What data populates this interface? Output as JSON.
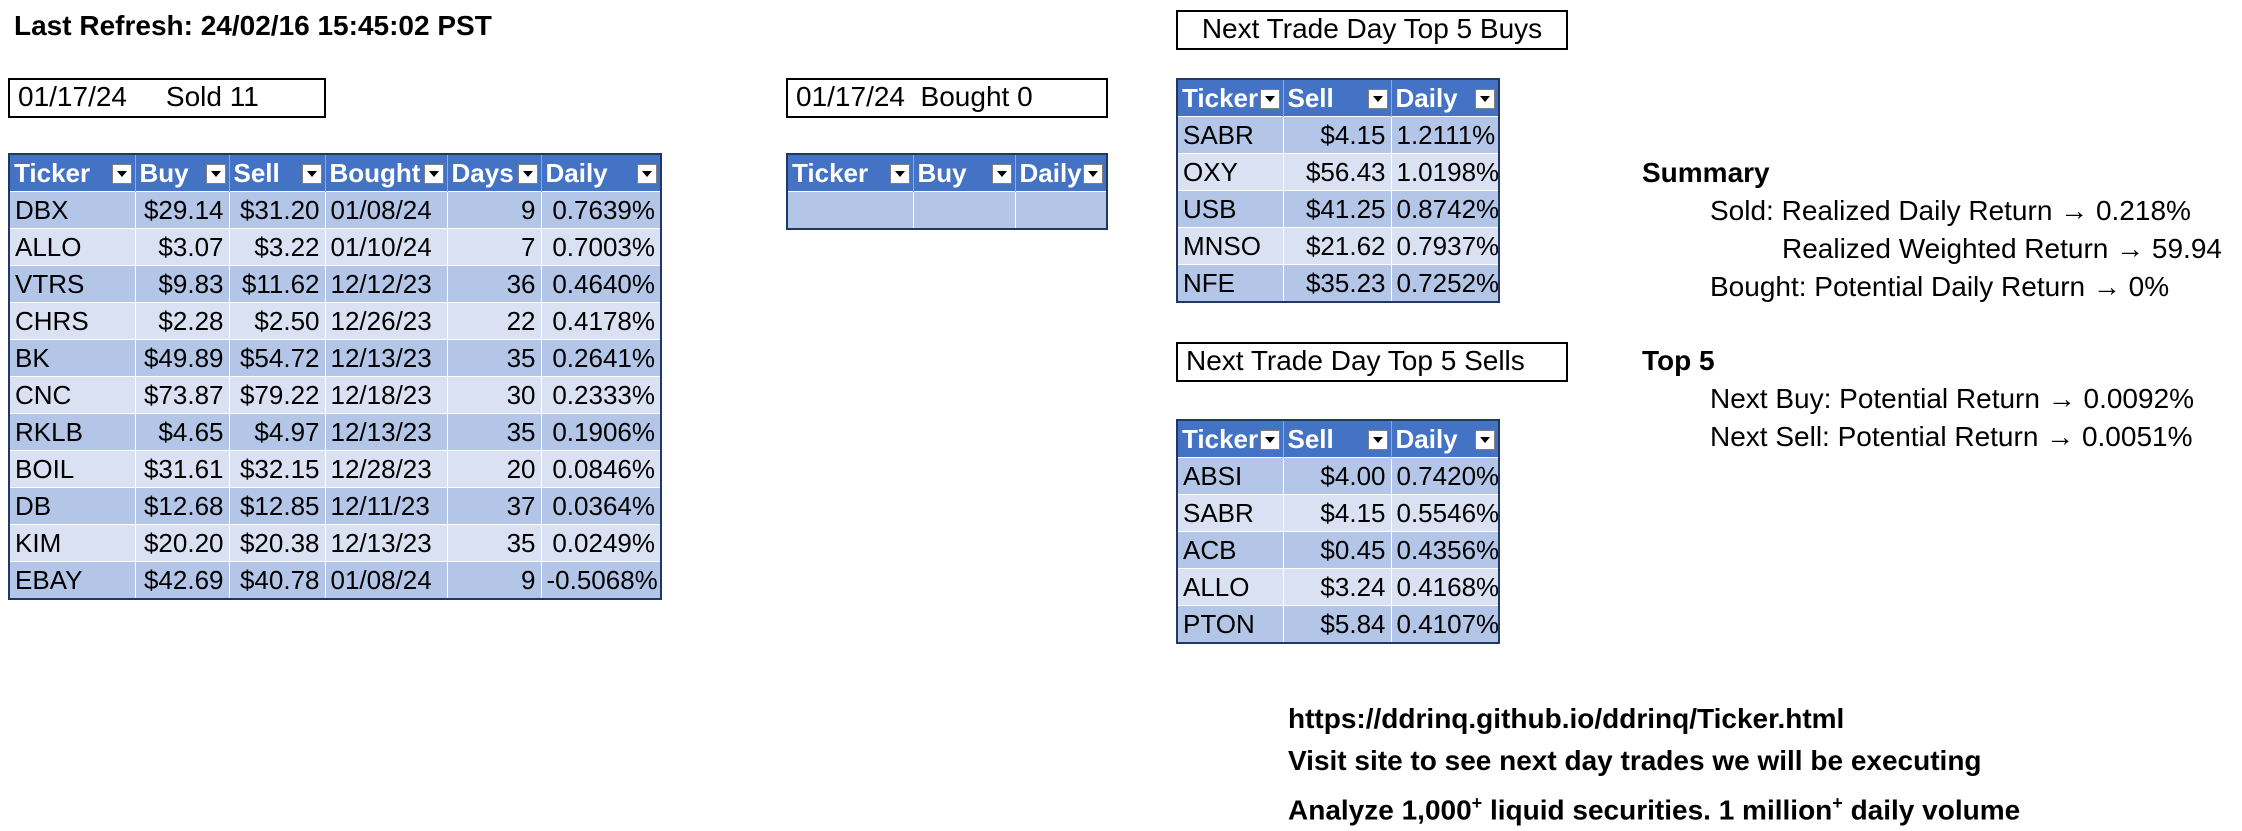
{
  "last_refresh": "Last Refresh: 24/02/16 15:45:02 PST",
  "sold_box": "01/17/24     Sold 11",
  "bought_box": "01/17/24  Bought 0",
  "buys_title": "Next Trade Day Top 5 Buys",
  "sells_title": "Next Trade Day Top 5 Sells",
  "sold_table": {
    "headers": [
      "Ticker",
      "Buy",
      "Sell",
      "Bought",
      "Days",
      "Daily"
    ],
    "rows": [
      [
        "DBX",
        "$29.14",
        "$31.20",
        "01/08/24",
        "9",
        "0.7639%"
      ],
      [
        "ALLO",
        "$3.07",
        "$3.22",
        "01/10/24",
        "7",
        "0.7003%"
      ],
      [
        "VTRS",
        "$9.83",
        "$11.62",
        "12/12/23",
        "36",
        "0.4640%"
      ],
      [
        "CHRS",
        "$2.28",
        "$2.50",
        "12/26/23",
        "22",
        "0.4178%"
      ],
      [
        "BK",
        "$49.89",
        "$54.72",
        "12/13/23",
        "35",
        "0.2641%"
      ],
      [
        "CNC",
        "$73.87",
        "$79.22",
        "12/18/23",
        "30",
        "0.2333%"
      ],
      [
        "RKLB",
        "$4.65",
        "$4.97",
        "12/13/23",
        "35",
        "0.1906%"
      ],
      [
        "BOIL",
        "$31.61",
        "$32.15",
        "12/28/23",
        "20",
        "0.0846%"
      ],
      [
        "DB",
        "$12.68",
        "$12.85",
        "12/11/23",
        "37",
        "0.0364%"
      ],
      [
        "KIM",
        "$20.20",
        "$20.38",
        "12/13/23",
        "35",
        "0.0249%"
      ],
      [
        "EBAY",
        "$42.69",
        "$40.78",
        "01/08/24",
        "9",
        "-0.5068%"
      ]
    ]
  },
  "bought_table": {
    "headers": [
      "Ticker",
      "Buy",
      "Daily"
    ]
  },
  "buys_table": {
    "headers": [
      "Ticker",
      "Sell",
      "Daily"
    ],
    "rows": [
      [
        "SABR",
        "$4.15",
        "1.2111%"
      ],
      [
        "OXY",
        "$56.43",
        "1.0198%"
      ],
      [
        "USB",
        "$41.25",
        "0.8742%"
      ],
      [
        "MNSO",
        "$21.62",
        "0.7937%"
      ],
      [
        "NFE",
        "$35.23",
        "0.7252%"
      ]
    ]
  },
  "sells_table": {
    "headers": [
      "Ticker",
      "Sell",
      "Daily"
    ],
    "rows": [
      [
        "ABSI",
        "$4.00",
        "0.7420%"
      ],
      [
        "SABR",
        "$4.15",
        "0.5546%"
      ],
      [
        "ACB",
        "$0.45",
        "0.4356%"
      ],
      [
        "ALLO",
        "$3.24",
        "0.4168%"
      ],
      [
        "PTON",
        "$5.84",
        "0.4107%"
      ]
    ]
  },
  "summary": {
    "title": "Summary",
    "sold_line": "Sold: Realized Daily Return → 0.218%",
    "weighted_line": "Realized Weighted Return → 59.94",
    "bought_line": "Bought: Potential Daily Return → 0%"
  },
  "top5": {
    "title": "Top 5",
    "buy_line": "Next Buy: Potential Return → 0.0092%",
    "sell_line": "Next Sell: Potential Return → 0.0051%"
  },
  "footer": {
    "url": "https://ddrinq.github.io/ddrinq/Ticker.html",
    "visit": "Visit site to see next day trades we will be executing",
    "analyze_a": "Analyze 1,000",
    "plus1": "+",
    "analyze_b": " liquid securities.  1 million",
    "plus2": "+",
    "analyze_c": " daily volume"
  }
}
